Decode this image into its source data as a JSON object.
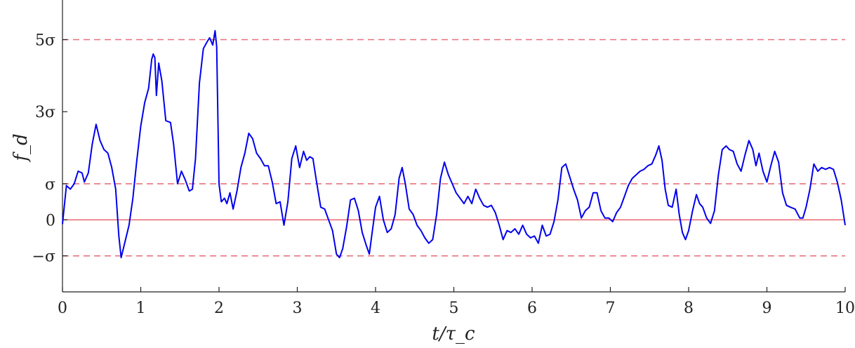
{
  "chart_data": {
    "type": "line",
    "xlabel": "t/τ_c",
    "ylabel": "f_d",
    "xlim": [
      0,
      10
    ],
    "ylim": [
      -2,
      6.1
    ],
    "x_ticks": [
      0,
      1,
      2,
      3,
      4,
      5,
      6,
      7,
      8,
      9,
      10
    ],
    "y_ticks": [
      {
        "value": -1,
        "label": "−σ"
      },
      {
        "value": 0,
        "label": "0"
      },
      {
        "value": 1,
        "label": "σ"
      },
      {
        "value": 3,
        "label": "3σ"
      },
      {
        "value": 5,
        "label": "5σ"
      }
    ],
    "reference_lines": [
      {
        "y": 5,
        "style": "dashed",
        "color": "#e8707a"
      },
      {
        "y": 1,
        "style": "dashed",
        "color": "#e8707a"
      },
      {
        "y": 0,
        "style": "solid",
        "color": "#e8707a"
      },
      {
        "y": -1,
        "style": "dashed",
        "color": "#e8707a"
      }
    ],
    "series": [
      {
        "color": "#0000ee",
        "points": [
          [
            0.0,
            -0.12
          ],
          [
            0.05,
            0.95
          ],
          [
            0.1,
            0.85
          ],
          [
            0.15,
            1.0
          ],
          [
            0.2,
            1.35
          ],
          [
            0.25,
            1.3
          ],
          [
            0.28,
            1.05
          ],
          [
            0.33,
            1.3
          ],
          [
            0.38,
            2.1
          ],
          [
            0.43,
            2.65
          ],
          [
            0.48,
            2.2
          ],
          [
            0.53,
            1.95
          ],
          [
            0.58,
            1.85
          ],
          [
            0.63,
            1.45
          ],
          [
            0.68,
            0.85
          ],
          [
            0.72,
            -0.45
          ],
          [
            0.75,
            -1.05
          ],
          [
            0.8,
            -0.6
          ],
          [
            0.85,
            -0.15
          ],
          [
            0.9,
            0.6
          ],
          [
            0.95,
            1.65
          ],
          [
            1.0,
            2.6
          ],
          [
            1.05,
            3.25
          ],
          [
            1.1,
            3.65
          ],
          [
            1.14,
            4.45
          ],
          [
            1.16,
            4.6
          ],
          [
            1.18,
            4.5
          ],
          [
            1.2,
            3.45
          ],
          [
            1.23,
            4.35
          ],
          [
            1.27,
            3.85
          ],
          [
            1.32,
            2.75
          ],
          [
            1.38,
            2.7
          ],
          [
            1.42,
            2.1
          ],
          [
            1.47,
            1.0
          ],
          [
            1.52,
            1.35
          ],
          [
            1.57,
            1.1
          ],
          [
            1.62,
            0.8
          ],
          [
            1.66,
            0.85
          ],
          [
            1.7,
            1.7
          ],
          [
            1.75,
            3.8
          ],
          [
            1.8,
            4.75
          ],
          [
            1.85,
            4.95
          ],
          [
            1.88,
            5.05
          ],
          [
            1.92,
            4.85
          ],
          [
            1.95,
            5.25
          ],
          [
            1.97,
            4.8
          ],
          [
            2.0,
            1.0
          ],
          [
            2.03,
            0.5
          ],
          [
            2.07,
            0.6
          ],
          [
            2.1,
            0.45
          ],
          [
            2.14,
            0.75
          ],
          [
            2.18,
            0.3
          ],
          [
            2.23,
            0.8
          ],
          [
            2.28,
            1.45
          ],
          [
            2.33,
            1.85
          ],
          [
            2.38,
            2.4
          ],
          [
            2.43,
            2.25
          ],
          [
            2.48,
            1.85
          ],
          [
            2.53,
            1.7
          ],
          [
            2.58,
            1.5
          ],
          [
            2.63,
            1.5
          ],
          [
            2.68,
            1.05
          ],
          [
            2.73,
            0.45
          ],
          [
            2.78,
            0.5
          ],
          [
            2.83,
            -0.15
          ],
          [
            2.88,
            0.5
          ],
          [
            2.93,
            1.7
          ],
          [
            2.98,
            2.05
          ],
          [
            3.03,
            1.45
          ],
          [
            3.08,
            1.9
          ],
          [
            3.12,
            1.65
          ],
          [
            3.16,
            1.75
          ],
          [
            3.2,
            1.7
          ],
          [
            3.25,
            1.0
          ],
          [
            3.3,
            0.35
          ],
          [
            3.35,
            0.3
          ],
          [
            3.4,
            0.0
          ],
          [
            3.45,
            -0.3
          ],
          [
            3.5,
            -0.95
          ],
          [
            3.54,
            -1.05
          ],
          [
            3.58,
            -0.8
          ],
          [
            3.63,
            -0.2
          ],
          [
            3.68,
            0.55
          ],
          [
            3.73,
            0.6
          ],
          [
            3.78,
            0.25
          ],
          [
            3.83,
            -0.35
          ],
          [
            3.88,
            -0.7
          ],
          [
            3.92,
            -0.95
          ],
          [
            3.96,
            -0.3
          ],
          [
            4.0,
            0.35
          ],
          [
            4.05,
            0.65
          ],
          [
            4.1,
            0.0
          ],
          [
            4.15,
            -0.35
          ],
          [
            4.2,
            -0.25
          ],
          [
            4.25,
            0.15
          ],
          [
            4.3,
            1.15
          ],
          [
            4.34,
            1.45
          ],
          [
            4.38,
            1.0
          ],
          [
            4.43,
            0.3
          ],
          [
            4.48,
            0.15
          ],
          [
            4.53,
            -0.15
          ],
          [
            4.58,
            -0.3
          ],
          [
            4.63,
            -0.5
          ],
          [
            4.68,
            -0.65
          ],
          [
            4.73,
            -0.55
          ],
          [
            4.78,
            0.15
          ],
          [
            4.83,
            1.15
          ],
          [
            4.88,
            1.6
          ],
          [
            4.93,
            1.25
          ],
          [
            4.98,
            1.0
          ],
          [
            5.03,
            0.75
          ],
          [
            5.08,
            0.6
          ],
          [
            5.13,
            0.45
          ],
          [
            5.18,
            0.65
          ],
          [
            5.23,
            0.45
          ],
          [
            5.28,
            0.85
          ],
          [
            5.33,
            0.6
          ],
          [
            5.38,
            0.4
          ],
          [
            5.43,
            0.35
          ],
          [
            5.48,
            0.4
          ],
          [
            5.53,
            0.2
          ],
          [
            5.58,
            -0.15
          ],
          [
            5.63,
            -0.55
          ],
          [
            5.68,
            -0.3
          ],
          [
            5.73,
            -0.35
          ],
          [
            5.78,
            -0.25
          ],
          [
            5.83,
            -0.4
          ],
          [
            5.88,
            -0.15
          ],
          [
            5.93,
            -0.4
          ],
          [
            5.98,
            -0.5
          ],
          [
            6.03,
            -0.45
          ],
          [
            6.08,
            -0.65
          ],
          [
            6.13,
            -0.15
          ],
          [
            6.18,
            -0.45
          ],
          [
            6.23,
            -0.4
          ],
          [
            6.28,
            -0.05
          ],
          [
            6.33,
            0.55
          ],
          [
            6.38,
            1.45
          ],
          [
            6.43,
            1.55
          ],
          [
            6.48,
            1.2
          ],
          [
            6.53,
            0.85
          ],
          [
            6.58,
            0.55
          ],
          [
            6.63,
            0.05
          ],
          [
            6.68,
            0.25
          ],
          [
            6.73,
            0.35
          ],
          [
            6.78,
            0.75
          ],
          [
            6.83,
            0.75
          ],
          [
            6.88,
            0.25
          ],
          [
            6.93,
            0.05
          ],
          [
            6.98,
            0.05
          ],
          [
            7.03,
            -0.05
          ],
          [
            7.08,
            0.2
          ],
          [
            7.13,
            0.35
          ],
          [
            7.18,
            0.65
          ],
          [
            7.23,
            0.95
          ],
          [
            7.28,
            1.15
          ],
          [
            7.33,
            1.25
          ],
          [
            7.38,
            1.35
          ],
          [
            7.43,
            1.4
          ],
          [
            7.48,
            1.5
          ],
          [
            7.53,
            1.55
          ],
          [
            7.58,
            1.8
          ],
          [
            7.62,
            2.05
          ],
          [
            7.66,
            1.65
          ],
          [
            7.7,
            0.85
          ],
          [
            7.74,
            0.4
          ],
          [
            7.79,
            0.35
          ],
          [
            7.84,
            0.85
          ],
          [
            7.88,
            0.15
          ],
          [
            7.92,
            -0.35
          ],
          [
            7.96,
            -0.55
          ],
          [
            8.0,
            -0.3
          ],
          [
            8.05,
            0.25
          ],
          [
            8.1,
            0.7
          ],
          [
            8.14,
            0.45
          ],
          [
            8.18,
            0.35
          ],
          [
            8.23,
            0.05
          ],
          [
            8.28,
            -0.1
          ],
          [
            8.33,
            0.25
          ],
          [
            8.38,
            1.25
          ],
          [
            8.43,
            1.95
          ],
          [
            8.48,
            2.05
          ],
          [
            8.52,
            1.95
          ],
          [
            8.57,
            1.9
          ],
          [
            8.62,
            1.55
          ],
          [
            8.67,
            1.35
          ],
          [
            8.72,
            1.8
          ],
          [
            8.77,
            2.2
          ],
          [
            8.82,
            1.95
          ],
          [
            8.86,
            1.5
          ],
          [
            8.9,
            1.85
          ],
          [
            8.95,
            1.35
          ],
          [
            9.0,
            1.05
          ],
          [
            9.05,
            1.5
          ],
          [
            9.1,
            1.9
          ],
          [
            9.15,
            1.6
          ],
          [
            9.2,
            0.75
          ],
          [
            9.25,
            0.4
          ],
          [
            9.3,
            0.35
          ],
          [
            9.36,
            0.3
          ],
          [
            9.42,
            0.05
          ],
          [
            9.46,
            0.05
          ],
          [
            9.5,
            0.35
          ],
          [
            9.55,
            0.85
          ],
          [
            9.6,
            1.55
          ],
          [
            9.65,
            1.35
          ],
          [
            9.7,
            1.45
          ],
          [
            9.75,
            1.4
          ],
          [
            9.8,
            1.45
          ],
          [
            9.85,
            1.4
          ],
          [
            9.9,
            1.05
          ],
          [
            9.95,
            0.55
          ],
          [
            10.0,
            -0.15
          ]
        ]
      }
    ]
  }
}
